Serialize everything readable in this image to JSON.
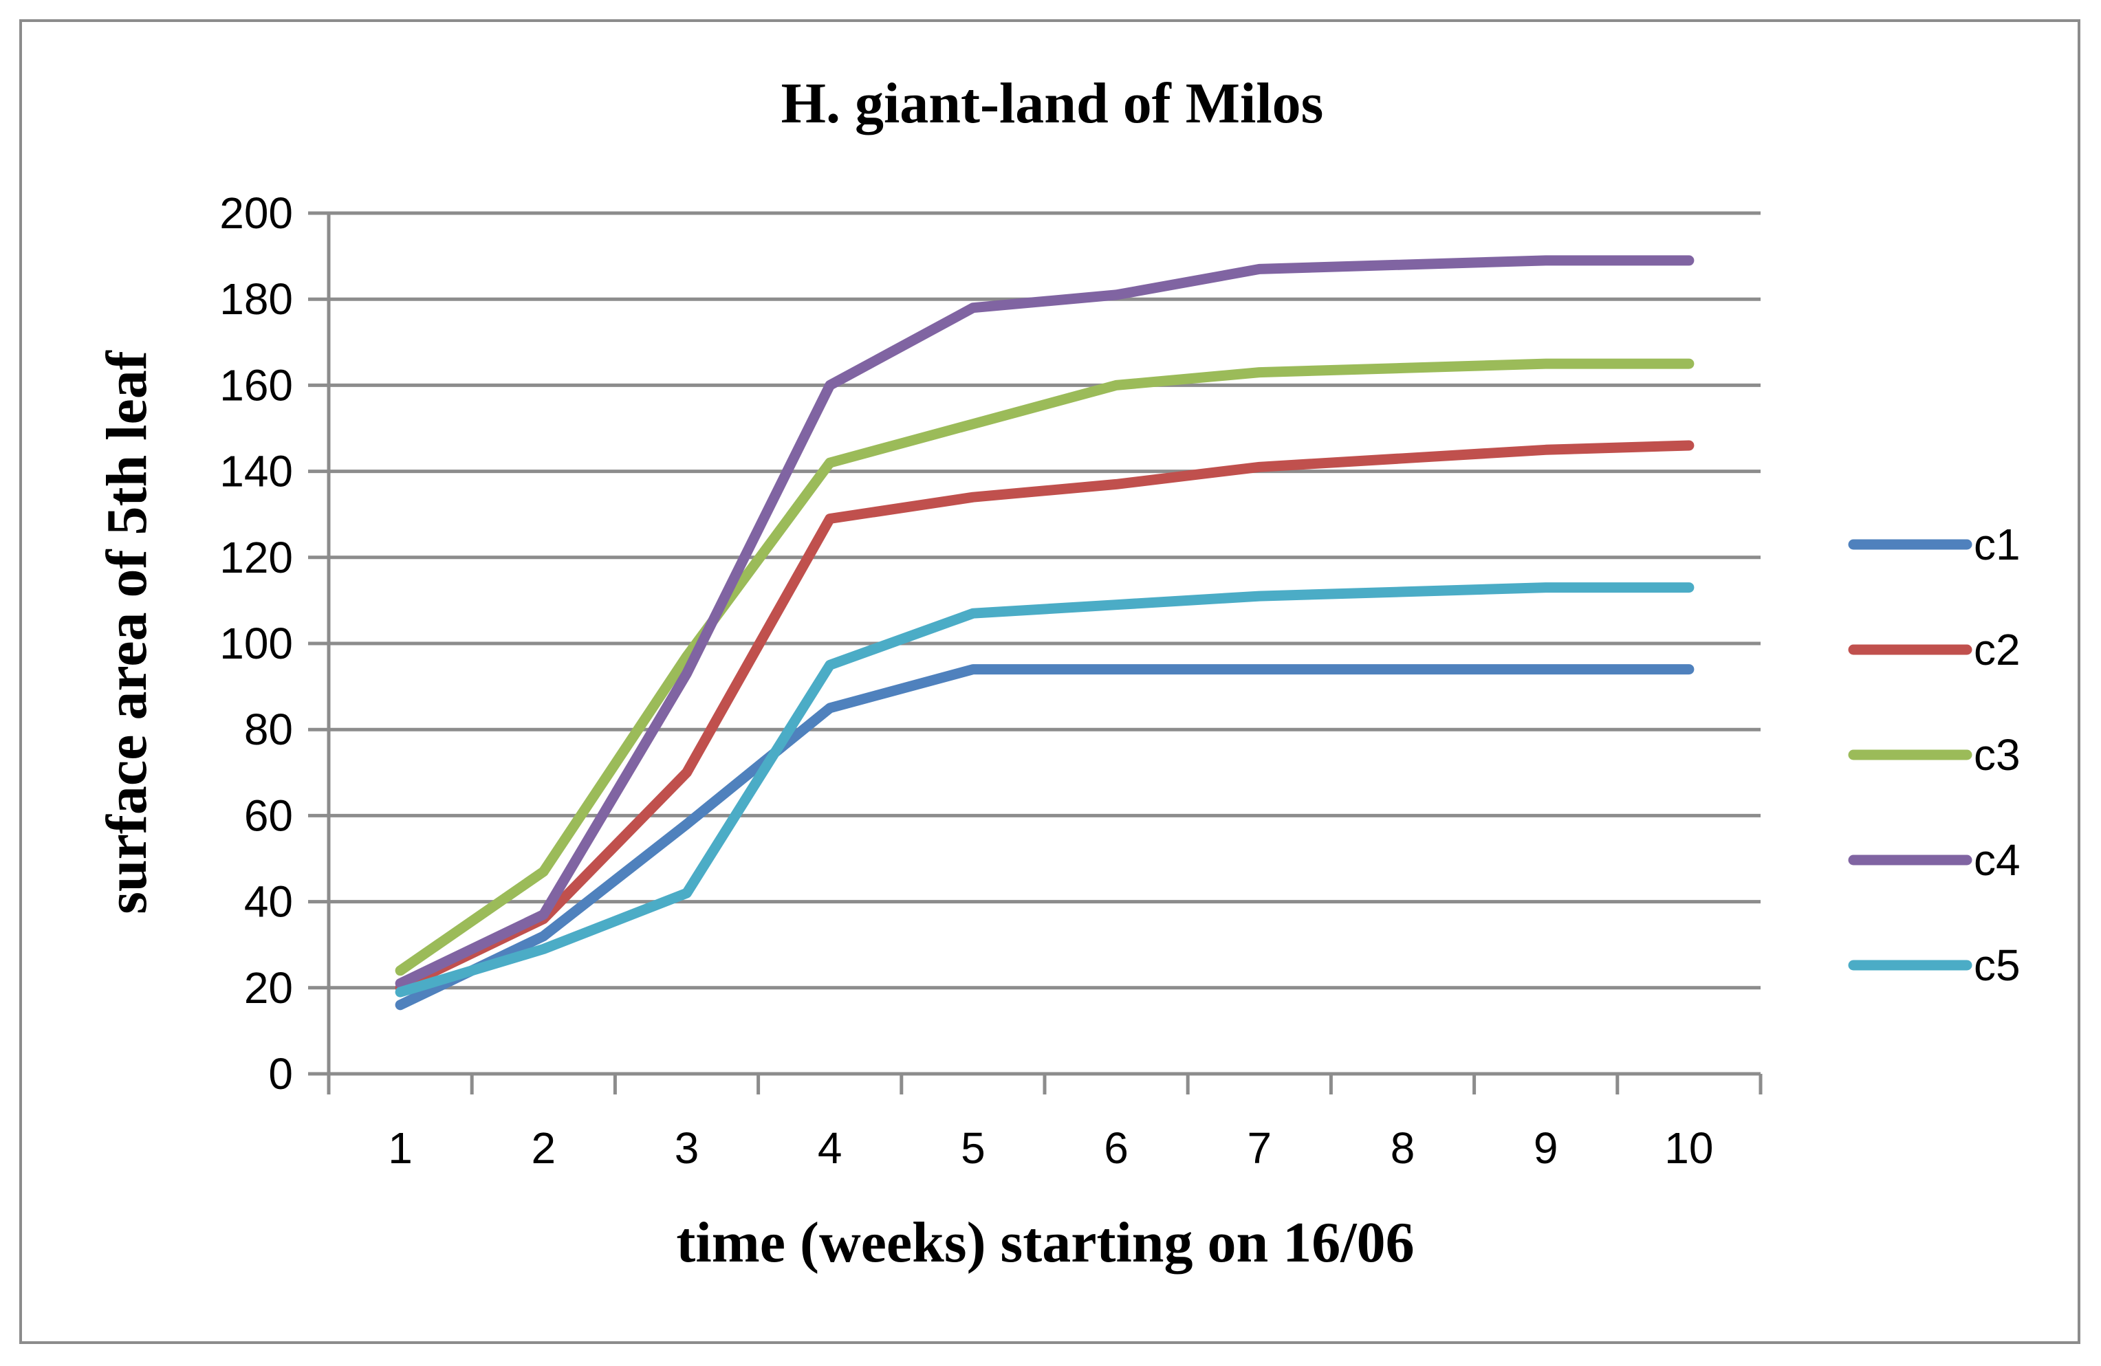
{
  "chart_data": {
    "type": "line",
    "title": "H. giant-land of Milos",
    "xlabel": "time (weeks) starting on 16/06",
    "ylabel": "surface area of 5th leaf",
    "categories": [
      "1",
      "2",
      "3",
      "4",
      "5",
      "6",
      "7",
      "8",
      "9",
      "10"
    ],
    "ylim": [
      0,
      200
    ],
    "yticks": [
      "0",
      "20",
      "40",
      "60",
      "80",
      "100",
      "120",
      "140",
      "160",
      "180",
      "200"
    ],
    "grid": true,
    "legend_position": "right",
    "series": [
      {
        "name": "c1",
        "color": "#4f81bd",
        "values": [
          16,
          32,
          58,
          85,
          94,
          94,
          94,
          94,
          94,
          94
        ]
      },
      {
        "name": "c2",
        "color": "#c0504d",
        "values": [
          20,
          36,
          70,
          129,
          134,
          137,
          141,
          143,
          145,
          146
        ]
      },
      {
        "name": "c3",
        "color": "#9bbb59",
        "values": [
          24,
          47,
          97,
          142,
          151,
          160,
          163,
          164,
          165,
          165
        ]
      },
      {
        "name": "c4",
        "color": "#8064a2",
        "values": [
          21,
          37,
          93,
          160,
          178,
          181,
          187,
          188,
          189,
          189
        ]
      },
      {
        "name": "c5",
        "color": "#4bacc6",
        "values": [
          19,
          29,
          42,
          95,
          107,
          109,
          111,
          112,
          113,
          113
        ]
      }
    ]
  }
}
